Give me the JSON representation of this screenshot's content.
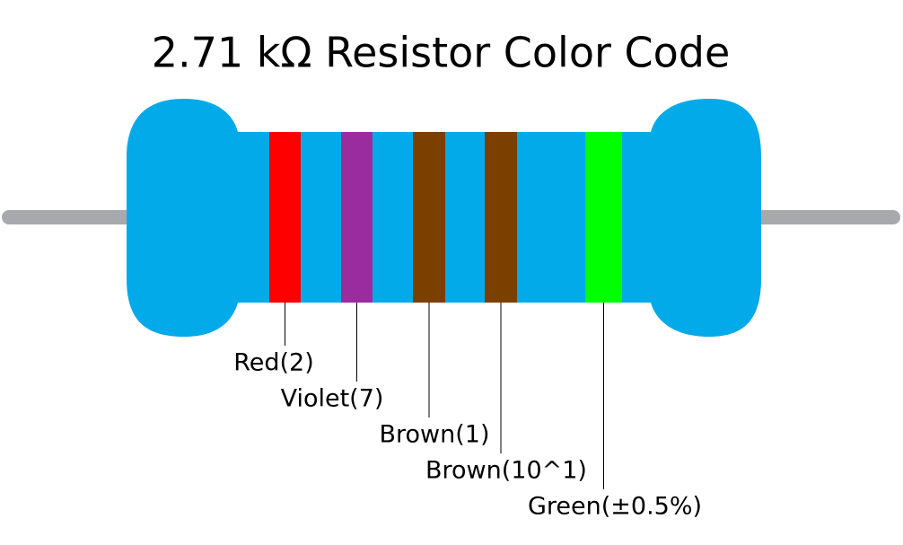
{
  "title": "2.71 kΩ Resistor Color Code",
  "bands": [
    {
      "label": "Red(2)",
      "color": "#ff0000"
    },
    {
      "label": "Violet(7)",
      "color": "#9b2ca0"
    },
    {
      "label": "Brown(1)",
      "color": "#7b3f00"
    },
    {
      "label": "Brown(10^1)",
      "color": "#7b3f00"
    },
    {
      "label": "Green(±0.5%)",
      "color": "#00ff00"
    }
  ]
}
